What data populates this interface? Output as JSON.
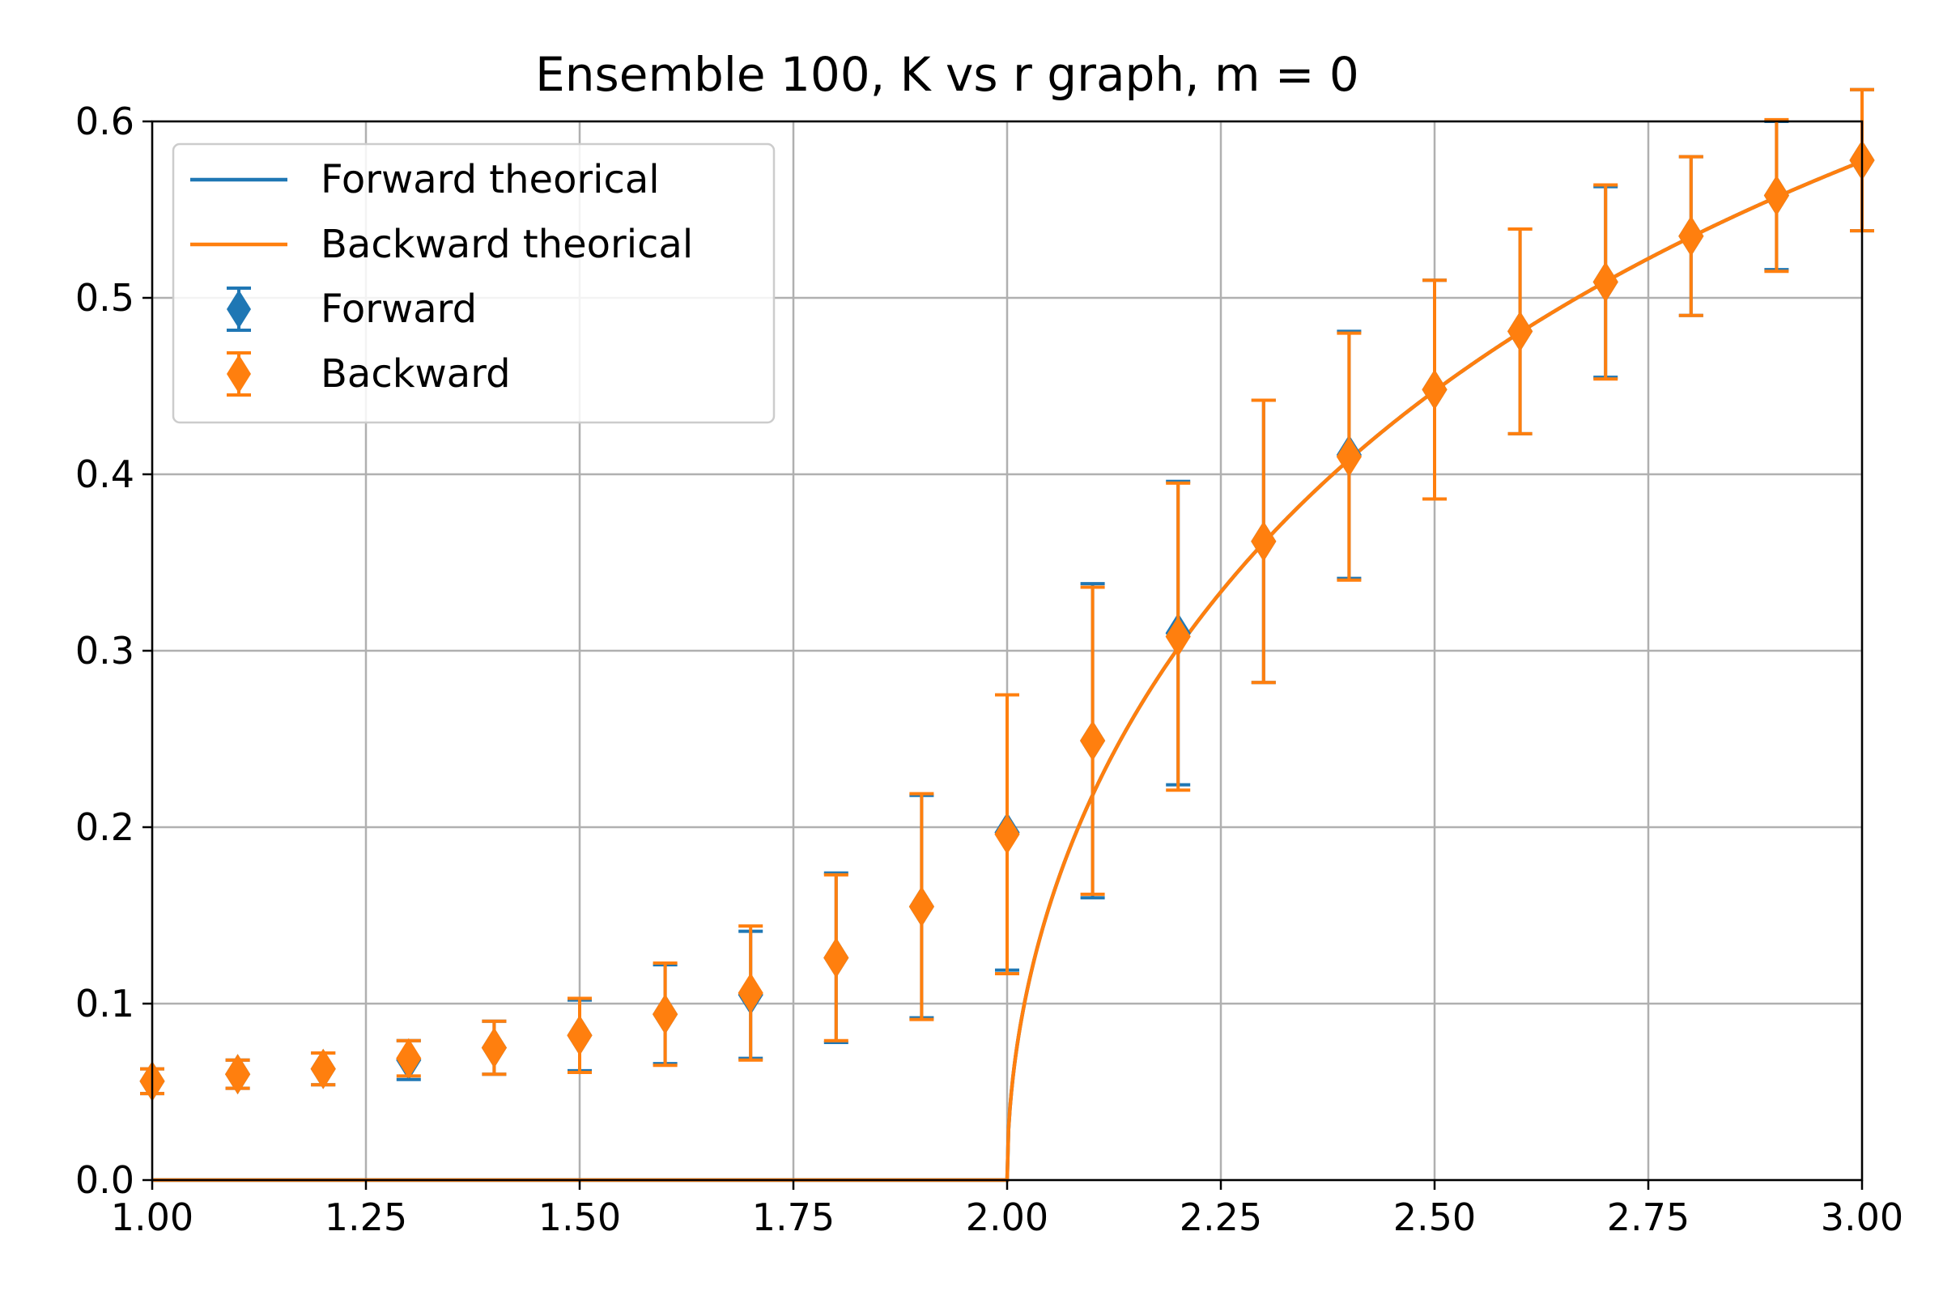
{
  "chart_data": {
    "type": "scatter",
    "title": "Ensemble 100, K vs r graph, m = 0",
    "xlabel": "",
    "ylabel": "",
    "xlim": [
      1.0,
      3.0
    ],
    "ylim": [
      0.0,
      0.6
    ],
    "xticks": [
      1.0,
      1.25,
      1.5,
      1.75,
      2.0,
      2.25,
      2.5,
      2.75,
      3.0
    ],
    "xtick_labels": [
      "1.00",
      "1.25",
      "1.50",
      "1.75",
      "2.00",
      "2.25",
      "2.50",
      "2.75",
      "3.00"
    ],
    "yticks": [
      0.0,
      0.1,
      0.2,
      0.3,
      0.4,
      0.5,
      0.6
    ],
    "ytick_labels": [
      "0.0",
      "0.1",
      "0.2",
      "0.3",
      "0.4",
      "0.5",
      "0.6"
    ],
    "grid": true,
    "legend_position": "top-left",
    "theory_critical_r": 2.0,
    "colors": {
      "forward": "#1f77b4",
      "backward": "#ff7f0e",
      "grid": "#b0b0b0"
    },
    "series": [
      {
        "name": "Forward theorical",
        "kind": "line",
        "color": "#1f77b4",
        "formula": "K = sqrt(1 - 2/r) for r > 2, else 0"
      },
      {
        "name": "Backward theorical",
        "kind": "line",
        "color": "#ff7f0e",
        "formula": "K = sqrt(1 - 2/r) for r > 2, else 0"
      },
      {
        "name": "Forward",
        "kind": "errorbar",
        "marker": "diamond",
        "color": "#1f77b4",
        "x": [
          1.0,
          1.1,
          1.2,
          1.3,
          1.4,
          1.5,
          1.6,
          1.7,
          1.8,
          1.9,
          2.0,
          2.1,
          2.2,
          2.3,
          2.4,
          2.5,
          2.6,
          2.7,
          2.8,
          2.9,
          3.0
        ],
        "y": [
          0.056,
          0.06,
          0.063,
          0.068,
          0.075,
          0.082,
          0.094,
          0.105,
          0.126,
          0.155,
          0.197,
          0.249,
          0.31,
          0.362,
          0.411,
          0.448,
          0.481,
          0.509,
          0.535,
          0.558,
          0.578
        ],
        "yerr": [
          0.007,
          0.008,
          0.009,
          0.011,
          0.015,
          0.02,
          0.028,
          0.036,
          0.048,
          0.063,
          0.078,
          0.089,
          0.086,
          0.08,
          0.07,
          0.062,
          0.058,
          0.054,
          0.045,
          0.042,
          0.04
        ]
      },
      {
        "name": "Backward",
        "kind": "errorbar",
        "marker": "diamond",
        "color": "#ff7f0e",
        "x": [
          1.0,
          1.1,
          1.2,
          1.3,
          1.4,
          1.5,
          1.6,
          1.7,
          1.8,
          1.9,
          2.0,
          2.1,
          2.2,
          2.3,
          2.4,
          2.5,
          2.6,
          2.7,
          2.8,
          2.9,
          3.0
        ],
        "y": [
          0.056,
          0.06,
          0.063,
          0.069,
          0.075,
          0.082,
          0.094,
          0.106,
          0.126,
          0.155,
          0.196,
          0.249,
          0.308,
          0.362,
          0.41,
          0.448,
          0.481,
          0.509,
          0.535,
          0.558,
          0.578
        ],
        "yerr": [
          0.007,
          0.008,
          0.009,
          0.01,
          0.015,
          0.021,
          0.029,
          0.038,
          0.047,
          0.064,
          0.079,
          0.087,
          0.087,
          0.08,
          0.07,
          0.062,
          0.058,
          0.055,
          0.045,
          0.043,
          0.04
        ]
      }
    ]
  }
}
